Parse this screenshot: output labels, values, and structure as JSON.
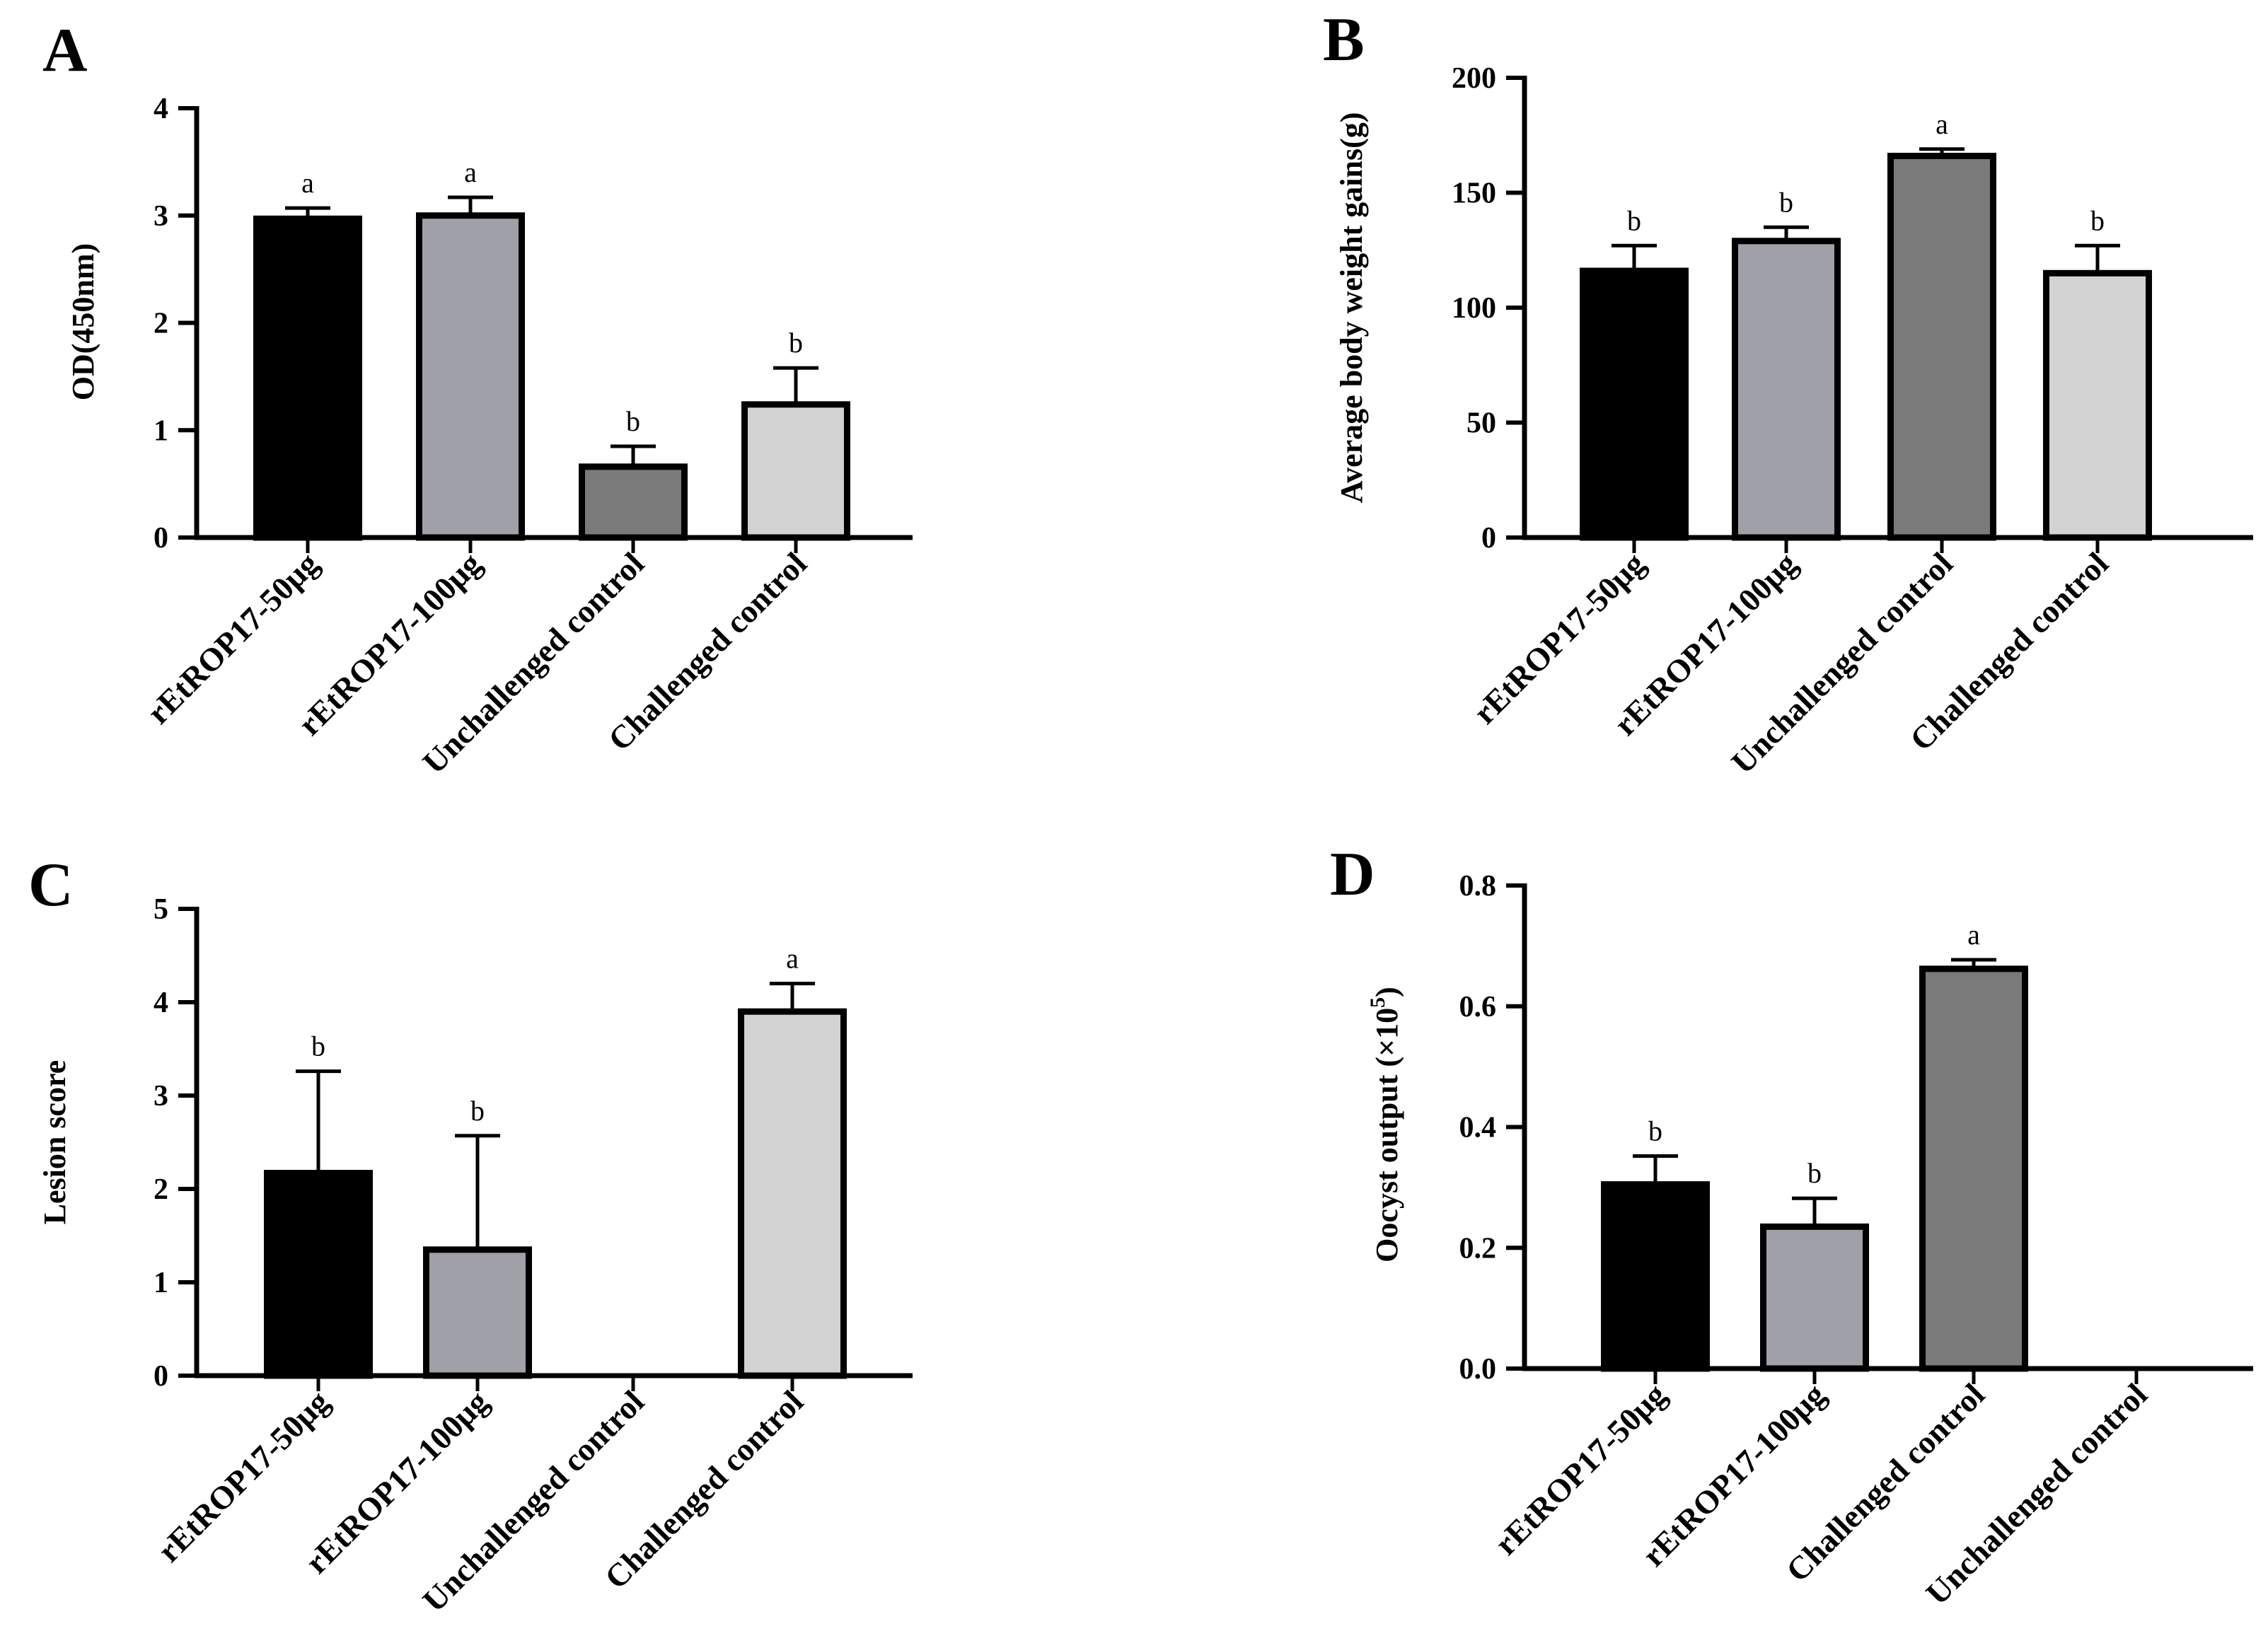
{
  "chart_data": [
    {
      "panel": "A",
      "type": "bar",
      "title": "",
      "xlabel": "",
      "ylabel": "OD(450nm)",
      "ylim": [
        0,
        4
      ],
      "yticks": [
        "0",
        "1",
        "2",
        "3",
        "4"
      ],
      "categories": [
        "rEtROP17-50μg",
        "rEtROP17-100μg",
        "Unchallenged control",
        "Challenged control"
      ],
      "values": [
        2.97,
        3.0,
        0.66,
        1.24
      ],
      "errors": [
        0.1,
        0.17,
        0.19,
        0.34
      ],
      "letters": [
        "a",
        "a",
        "b",
        "b"
      ],
      "colors": [
        "#000000",
        "#a0a0a8",
        "#7a7a7a",
        "#d2d2d2"
      ]
    },
    {
      "panel": "B",
      "type": "bar",
      "title": "",
      "xlabel": "",
      "ylabel": "Average body weight gains(g)",
      "ylim": [
        0,
        200
      ],
      "yticks": [
        "0",
        "50",
        "100",
        "150",
        "200"
      ],
      "categories": [
        "rEtROP17-50μg",
        "rEtROP17-100μg",
        "Unchallenged control",
        "Challenged control"
      ],
      "values": [
        116,
        129,
        166,
        115
      ],
      "errors": [
        11,
        6,
        3,
        12
      ],
      "letters": [
        "b",
        "b",
        "a",
        "b"
      ],
      "colors": [
        "#000000",
        "#a0a0a8",
        "#7a7a7a",
        "#d2d2d2"
      ]
    },
    {
      "panel": "C",
      "type": "bar",
      "title": "",
      "xlabel": "",
      "ylabel": "Lesion score",
      "ylim": [
        0,
        5
      ],
      "yticks": [
        "0",
        "1",
        "2",
        "3",
        "4",
        "5"
      ],
      "categories": [
        "rEtROP17-50μg",
        "rEtROP17-100μg",
        "Unchallenged control",
        "Challenged control"
      ],
      "values": [
        2.17,
        1.35,
        0,
        3.9
      ],
      "errors": [
        1.09,
        1.22,
        0,
        0.3
      ],
      "letters": [
        "b",
        "b",
        "",
        "a"
      ],
      "colors": [
        "#000000",
        "#a0a0a8",
        "#7a7a7a",
        "#d2d2d2"
      ]
    },
    {
      "panel": "D",
      "type": "bar",
      "title": "",
      "xlabel": "",
      "ylabel": "Oocyst output (×10",
      "ylabel_superscript": "5",
      "ylabel_suffix": ")",
      "ylim": [
        0,
        0.8
      ],
      "yticks": [
        "0.0",
        "0.2",
        "0.4",
        "0.6",
        "0.8"
      ],
      "categories": [
        "rEtROP17-50μg",
        "rEtROP17-100μg",
        "Challenged control",
        "Unchallenged control"
      ],
      "values": [
        0.305,
        0.235,
        0.662,
        0
      ],
      "errors": [
        0.047,
        0.047,
        0.015,
        0
      ],
      "letters": [
        "b",
        "b",
        "a",
        ""
      ],
      "colors": [
        "#000000",
        "#a0a0a8",
        "#7a7a7a",
        "#d2d2d2"
      ]
    }
  ]
}
